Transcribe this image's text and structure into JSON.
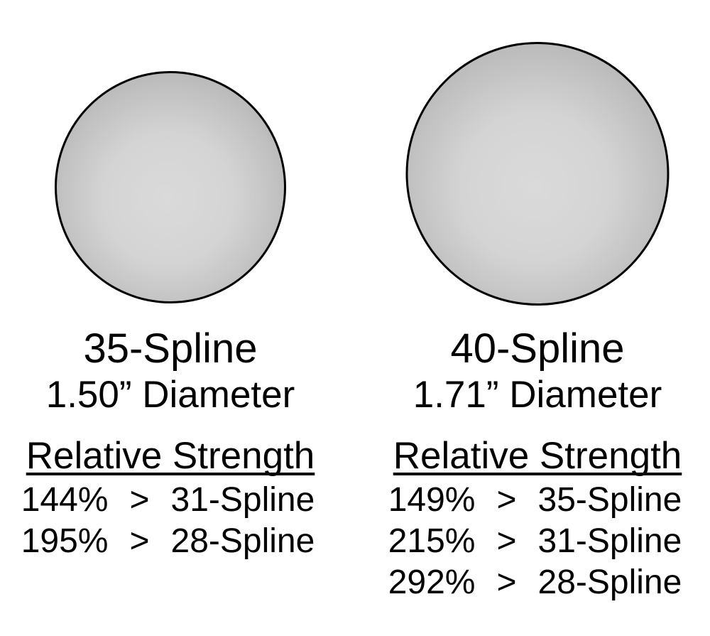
{
  "symbols": {
    "greater_than": ">"
  },
  "colors": {
    "background": "#ffffff",
    "text": "#000000",
    "circle_outline": "#000000",
    "circle_fill_center": "#d9d9d9",
    "circle_fill_edge": "#b0b0b0"
  },
  "columns": [
    {
      "title": "35-Spline",
      "diameter": "1.50” Diameter",
      "strength_header": "Relative Strength",
      "strength_rows": [
        {
          "percent": "144%",
          "versus": "31-Spline"
        },
        {
          "percent": "195%",
          "versus": "28-Spline"
        }
      ]
    },
    {
      "title": "40-Spline",
      "diameter": "1.71” Diameter",
      "strength_header": "Relative Strength",
      "strength_rows": [
        {
          "percent": "149%",
          "versus": "35-Spline"
        },
        {
          "percent": "215%",
          "versus": "31-Spline"
        },
        {
          "percent": "292%",
          "versus": "28-Spline"
        }
      ]
    }
  ]
}
